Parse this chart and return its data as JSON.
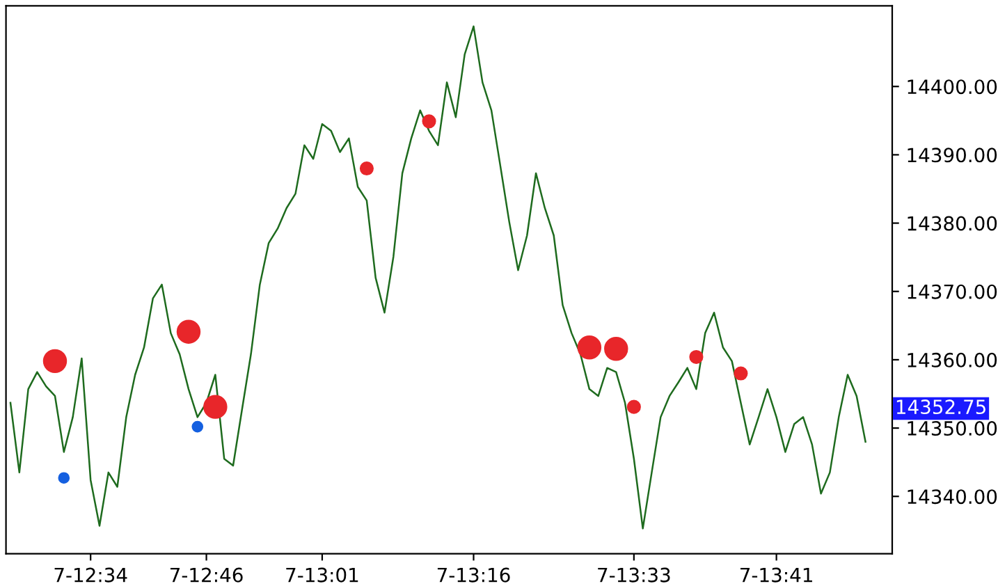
{
  "chart_data": {
    "type": "line",
    "categories": [
      null,
      null,
      null,
      null,
      null,
      null,
      null,
      null,
      null,
      "7-12:34",
      null,
      null,
      null,
      null,
      null,
      null,
      null,
      null,
      null,
      null,
      null,
      null,
      "7-12:46",
      null,
      null,
      null,
      null,
      null,
      null,
      null,
      null,
      null,
      null,
      null,
      null,
      "7-13:01",
      null,
      null,
      null,
      null,
      null,
      null,
      null,
      null,
      null,
      null,
      null,
      null,
      null,
      null,
      null,
      null,
      "7-13:16",
      null,
      null,
      null,
      null,
      null,
      null,
      null,
      null,
      null,
      null,
      null,
      null,
      null,
      null,
      null,
      null,
      null,
      "7-13:33",
      null,
      null,
      null,
      null,
      null,
      null,
      null,
      null,
      null,
      null,
      null,
      null,
      null,
      null,
      null,
      "7-13:41",
      null,
      null,
      null,
      null,
      null,
      null,
      null,
      null,
      null,
      null
    ],
    "ylim": [
      14331.6,
      14411.8
    ],
    "yticks": [
      {
        "value": 14340,
        "label": "14340.00"
      },
      {
        "value": 14350,
        "label": "14350.00"
      },
      {
        "value": 14360,
        "label": "14360.00"
      },
      {
        "value": 14370,
        "label": "14370.00"
      },
      {
        "value": 14380,
        "label": "14380.00"
      },
      {
        "value": 14390,
        "label": "14390.00"
      },
      {
        "value": 14400,
        "label": "14400.00"
      }
    ],
    "grid": false,
    "line_style": "solid",
    "annotations": [
      "14352.75"
    ],
    "series": [
      {
        "color": "#1e6b1e",
        "values": [
          14353.7,
          14343.5,
          14355.7,
          14358.2,
          14356.1,
          14354.7,
          14346.5,
          14351.6,
          14360.2,
          14342.4,
          14335.7,
          14343.5,
          14341.4,
          14351.6,
          14357.8,
          14361.8,
          14369.0,
          14371.0,
          14363.9,
          14360.8,
          14355.7,
          14351.6,
          14353.7,
          14357.8,
          14345.5,
          14344.5,
          14352.7,
          14360.8,
          14371.0,
          14377.1,
          14379.2,
          14382.2,
          14384.3,
          14391.4,
          14389.4,
          14394.5,
          14393.5,
          14390.4,
          14392.4,
          14385.3,
          14383.3,
          14372.0,
          14366.9,
          14375.1,
          14387.3,
          14392.4,
          14396.5,
          14393.5,
          14391.4,
          14400.6,
          14395.5,
          14404.7,
          14408.8,
          14400.6,
          14396.5,
          14388.4,
          14380.2,
          14373.1,
          14378.2,
          14387.3,
          14382.2,
          14378.2,
          14368.0,
          14363.9,
          14360.8,
          14355.7,
          14354.7,
          14358.8,
          14358.2,
          14353.7,
          14345.5,
          14335.3,
          14343.5,
          14351.6,
          14354.7,
          14356.7,
          14358.8,
          14355.7,
          14363.9,
          14366.9,
          14361.8,
          14359.8,
          14353.7,
          14347.6,
          14351.6,
          14355.7,
          14351.6,
          14346.5,
          14350.6,
          14351.6,
          14347.6,
          14340.4,
          14343.5,
          14351.6,
          14357.8,
          14354.7,
          14348.0
        ]
      },
      {
        "type": "bubble",
        "color": "#e8262a",
        "marker": "circle",
        "values": [
          null,
          null,
          null,
          null,
          null,
          14359.8,
          null,
          null,
          null,
          null,
          null,
          null,
          null,
          null,
          null,
          null,
          null,
          null,
          null,
          null,
          14364.1,
          null,
          null,
          14353.1,
          null,
          null,
          null,
          null,
          null,
          null,
          null,
          null,
          null,
          null,
          null,
          null,
          null,
          null,
          null,
          null,
          14388.0,
          null,
          null,
          null,
          null,
          null,
          null,
          14394.9,
          null,
          null,
          null,
          null,
          null,
          null,
          null,
          null,
          null,
          null,
          null,
          null,
          null,
          null,
          null,
          null,
          null,
          14361.8,
          null,
          null,
          14361.6,
          null,
          14353.1,
          null,
          null,
          null,
          null,
          null,
          null,
          14360.4,
          null,
          null,
          null,
          null,
          14358.0,
          null,
          null,
          null,
          null,
          null,
          null,
          null,
          null,
          null,
          null,
          null,
          null,
          null,
          null
        ],
        "sizes": [
          null,
          null,
          null,
          null,
          null,
          1,
          null,
          null,
          null,
          null,
          null,
          null,
          null,
          null,
          null,
          null,
          null,
          null,
          null,
          null,
          1,
          null,
          null,
          1,
          null,
          null,
          null,
          null,
          null,
          null,
          null,
          null,
          null,
          null,
          null,
          null,
          null,
          null,
          null,
          null,
          0.3,
          null,
          null,
          null,
          null,
          null,
          null,
          0.3,
          null,
          null,
          null,
          null,
          null,
          null,
          null,
          null,
          null,
          null,
          null,
          null,
          null,
          null,
          null,
          null,
          null,
          1,
          null,
          null,
          1,
          null,
          0.3,
          null,
          null,
          null,
          null,
          null,
          null,
          0.3,
          null,
          null,
          null,
          null,
          0.3,
          null,
          null,
          null,
          null,
          null,
          null,
          null,
          null,
          null,
          null,
          null,
          null,
          null,
          null
        ]
      },
      {
        "type": "scatter",
        "color": "#1560e0",
        "marker": "circle",
        "values": [
          null,
          null,
          null,
          null,
          null,
          null,
          14342.7,
          null,
          null,
          null,
          null,
          null,
          null,
          null,
          null,
          null,
          null,
          null,
          null,
          null,
          null,
          14350.2,
          null,
          null,
          null,
          null,
          null,
          null,
          null,
          null,
          null,
          null,
          null,
          null,
          null,
          null,
          null,
          null,
          null,
          null,
          null,
          null,
          null,
          null,
          null,
          null,
          null,
          null,
          null,
          null,
          null,
          null,
          null,
          null,
          null,
          null,
          null,
          null,
          null,
          null,
          null,
          null,
          null,
          null,
          null,
          null,
          null,
          null,
          null,
          null,
          null,
          null,
          null,
          null,
          null,
          null,
          null,
          null,
          null,
          null,
          null,
          null,
          null,
          null,
          null,
          null,
          null,
          null,
          null,
          null,
          null,
          null,
          null,
          null,
          null,
          null,
          null
        ]
      }
    ]
  }
}
